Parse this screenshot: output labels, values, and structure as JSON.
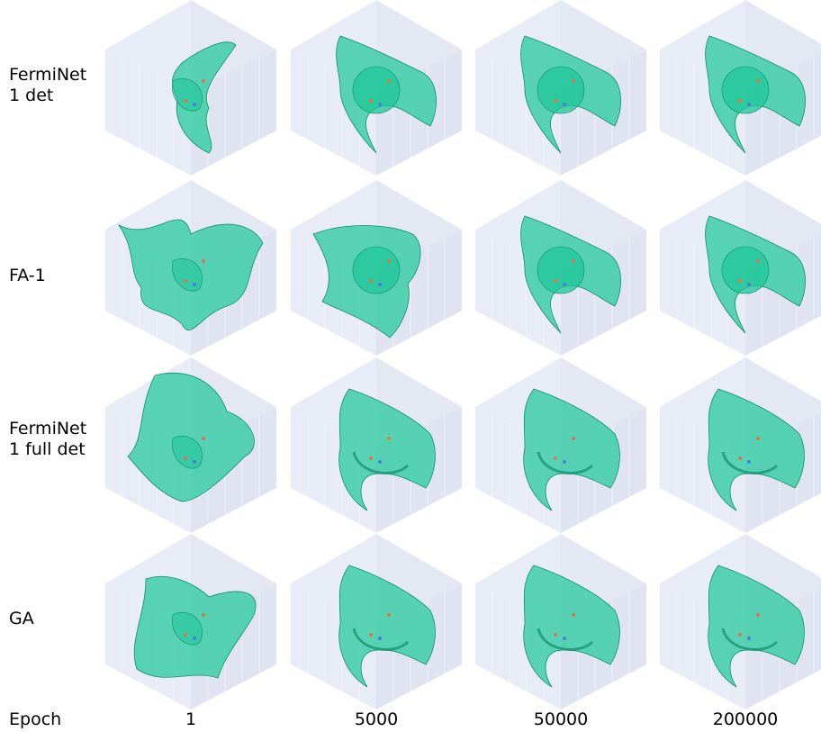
{
  "row_labels": [
    "FermiNet\n1 det",
    "FA-1",
    "FermiNet\n1 full det",
    "GA"
  ],
  "epoch_label": "Epoch",
  "epochs": [
    "1",
    "5000",
    "50000",
    "200000"
  ],
  "colors": {
    "cube_face": "#e8ecf6",
    "cube_grid": "#ffffff",
    "surface": "#1fc79a",
    "surface_edge": "#0e8f69",
    "nucleus_orange": "#d9774a",
    "nucleus_blue": "#4a7fd9"
  }
}
